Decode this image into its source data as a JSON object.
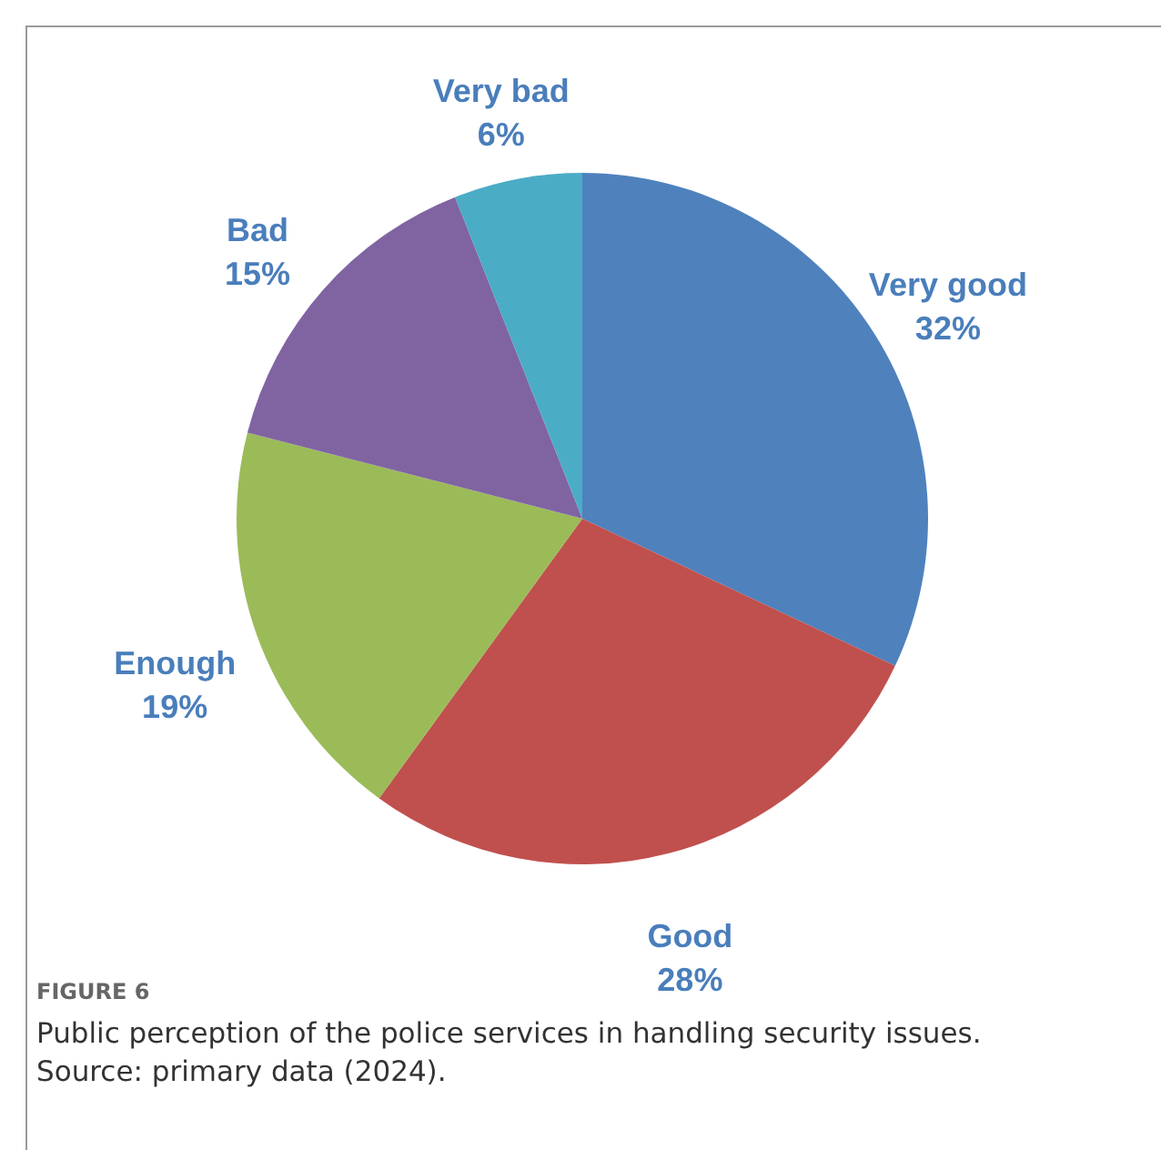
{
  "chart_data": {
    "type": "pie",
    "categories": [
      "Very good",
      "Good",
      "Enough",
      "Bad",
      "Very bad"
    ],
    "values": [
      32,
      28,
      19,
      15,
      6
    ],
    "value_labels": [
      "32%",
      "28%",
      "19%",
      "15%",
      "6%"
    ],
    "colors": [
      "#4f81bd",
      "#c0504d",
      "#9bbb59",
      "#8064a2",
      "#4bacc6"
    ],
    "annotations": [
      "FIGURE 6",
      "Public perception of the police services in handling security issues.",
      "Source: primary data (2024)."
    ]
  }
}
